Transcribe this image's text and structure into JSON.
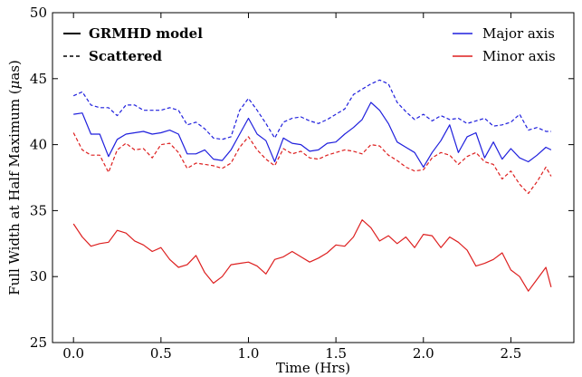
{
  "chart_data": {
    "type": "line",
    "title": "",
    "xlabel": "Time (Hrs)",
    "ylabel": "Full Width at Half Maximum (μas)",
    "ylabel_prefix": "Full Width at Half Maximum (",
    "ylabel_mu": "μ",
    "ylabel_suffix": "as)",
    "xlim": [
      -0.12,
      2.86
    ],
    "ylim": [
      25,
      50
    ],
    "xticks": [
      0.0,
      0.5,
      1.0,
      1.5,
      2.0,
      2.5
    ],
    "xtick_labels": [
      "0.0",
      "0.5",
      "1.0",
      "1.5",
      "2.0",
      "2.5"
    ],
    "yticks": [
      25,
      30,
      35,
      40,
      45,
      50
    ],
    "ytick_labels": [
      "25",
      "30",
      "35",
      "40",
      "45",
      "50"
    ],
    "grid": false,
    "legend_style": {
      "position": "top-left",
      "entries": [
        {
          "label": "GRMHD model",
          "line": "solid",
          "color": "#000000"
        },
        {
          "label": "Scattered",
          "line": "dashed",
          "color": "#000000"
        }
      ]
    },
    "legend_color": {
      "position": "top-right",
      "entries": [
        {
          "label": "Major axis",
          "color": "#1f1fdd"
        },
        {
          "label": "Minor axis",
          "color": "#dd1f1f"
        }
      ]
    },
    "series": [
      {
        "axis": "Major axis",
        "style": "dashed",
        "color": "#1f1fdd",
        "x": [
          0.0,
          0.05,
          0.1,
          0.15,
          0.2,
          0.25,
          0.3,
          0.35,
          0.4,
          0.45,
          0.5,
          0.55,
          0.6,
          0.65,
          0.7,
          0.75,
          0.8,
          0.85,
          0.9,
          0.95,
          1.0,
          1.05,
          1.1,
          1.15,
          1.2,
          1.25,
          1.3,
          1.35,
          1.4,
          1.45,
          1.5,
          1.55,
          1.6,
          1.65,
          1.7,
          1.75,
          1.8,
          1.85,
          1.9,
          1.95,
          2.0,
          2.05,
          2.1,
          2.15,
          2.2,
          2.25,
          2.3,
          2.35,
          2.4,
          2.45,
          2.5,
          2.55,
          2.6,
          2.65,
          2.7,
          2.73
        ],
        "y": [
          43.7,
          44.0,
          43.0,
          42.8,
          42.8,
          42.2,
          43.0,
          43.0,
          42.6,
          42.6,
          42.6,
          42.8,
          42.6,
          41.5,
          41.7,
          41.2,
          40.5,
          40.4,
          40.6,
          42.6,
          43.5,
          42.6,
          41.6,
          40.5,
          41.7,
          42.0,
          42.1,
          41.8,
          41.6,
          41.9,
          42.3,
          42.7,
          43.8,
          44.2,
          44.6,
          44.9,
          44.6,
          43.2,
          42.5,
          41.9,
          42.3,
          41.8,
          42.2,
          41.9,
          42.0,
          41.6,
          41.8,
          42.0,
          41.4,
          41.5,
          41.7,
          42.3,
          41.1,
          41.3,
          41.0,
          41.0
        ]
      },
      {
        "axis": "Major axis",
        "style": "solid",
        "color": "#1f1fdd",
        "x": [
          0.0,
          0.05,
          0.1,
          0.15,
          0.2,
          0.25,
          0.3,
          0.35,
          0.4,
          0.45,
          0.5,
          0.55,
          0.6,
          0.65,
          0.7,
          0.75,
          0.8,
          0.85,
          0.9,
          0.95,
          1.0,
          1.05,
          1.1,
          1.15,
          1.2,
          1.25,
          1.3,
          1.35,
          1.4,
          1.45,
          1.5,
          1.55,
          1.6,
          1.65,
          1.7,
          1.75,
          1.8,
          1.85,
          1.9,
          1.95,
          2.0,
          2.05,
          2.1,
          2.15,
          2.2,
          2.25,
          2.3,
          2.35,
          2.4,
          2.45,
          2.5,
          2.55,
          2.6,
          2.65,
          2.7,
          2.73
        ],
        "y": [
          42.3,
          42.4,
          40.8,
          40.8,
          39.1,
          40.4,
          40.8,
          40.9,
          41.0,
          40.8,
          40.9,
          41.1,
          40.8,
          39.3,
          39.3,
          39.6,
          38.9,
          38.8,
          39.6,
          40.8,
          42.0,
          40.8,
          40.3,
          38.7,
          40.5,
          40.1,
          40.0,
          39.5,
          39.6,
          40.1,
          40.2,
          40.8,
          41.3,
          41.9,
          43.2,
          42.6,
          41.6,
          40.2,
          39.8,
          39.4,
          38.3,
          39.4,
          40.3,
          41.5,
          39.4,
          40.6,
          40.9,
          39.0,
          40.2,
          38.9,
          39.7,
          39.0,
          38.7,
          39.2,
          39.8,
          39.6
        ]
      },
      {
        "axis": "Minor axis",
        "style": "dashed",
        "color": "#dd1f1f",
        "x": [
          0.0,
          0.05,
          0.1,
          0.15,
          0.2,
          0.25,
          0.3,
          0.35,
          0.4,
          0.45,
          0.5,
          0.55,
          0.6,
          0.65,
          0.7,
          0.75,
          0.8,
          0.85,
          0.9,
          0.95,
          1.0,
          1.05,
          1.1,
          1.15,
          1.2,
          1.25,
          1.3,
          1.35,
          1.4,
          1.45,
          1.5,
          1.55,
          1.6,
          1.65,
          1.7,
          1.75,
          1.8,
          1.85,
          1.9,
          1.95,
          2.0,
          2.05,
          2.1,
          2.15,
          2.2,
          2.25,
          2.3,
          2.35,
          2.4,
          2.45,
          2.5,
          2.55,
          2.6,
          2.65,
          2.7,
          2.73
        ],
        "y": [
          40.9,
          39.6,
          39.2,
          39.2,
          37.9,
          39.6,
          40.1,
          39.6,
          39.7,
          39.0,
          40.0,
          40.1,
          39.4,
          38.2,
          38.6,
          38.5,
          38.4,
          38.2,
          38.6,
          39.8,
          40.6,
          39.6,
          38.9,
          38.4,
          39.7,
          39.3,
          39.5,
          39.0,
          38.9,
          39.2,
          39.4,
          39.6,
          39.5,
          39.3,
          40.0,
          39.9,
          39.2,
          38.8,
          38.3,
          38.0,
          38.1,
          39.0,
          39.4,
          39.2,
          38.5,
          39.1,
          39.4,
          38.7,
          38.5,
          37.4,
          38.0,
          37.0,
          36.3,
          37.2,
          38.3,
          37.6
        ]
      },
      {
        "axis": "Minor axis",
        "style": "solid",
        "color": "#dd1f1f",
        "x": [
          0.0,
          0.05,
          0.1,
          0.15,
          0.2,
          0.25,
          0.3,
          0.35,
          0.4,
          0.45,
          0.5,
          0.55,
          0.6,
          0.65,
          0.7,
          0.75,
          0.8,
          0.85,
          0.9,
          0.95,
          1.0,
          1.05,
          1.1,
          1.15,
          1.2,
          1.25,
          1.3,
          1.35,
          1.4,
          1.45,
          1.5,
          1.55,
          1.6,
          1.65,
          1.7,
          1.75,
          1.8,
          1.85,
          1.9,
          1.95,
          2.0,
          2.05,
          2.1,
          2.15,
          2.2,
          2.25,
          2.3,
          2.35,
          2.4,
          2.45,
          2.5,
          2.55,
          2.6,
          2.65,
          2.7,
          2.73
        ],
        "y": [
          34.0,
          33.0,
          32.3,
          32.5,
          32.6,
          33.5,
          33.3,
          32.7,
          32.4,
          31.9,
          32.2,
          31.3,
          30.7,
          30.9,
          31.6,
          30.3,
          29.5,
          30.0,
          30.9,
          31.0,
          31.1,
          30.8,
          30.2,
          31.3,
          31.5,
          31.9,
          31.5,
          31.1,
          31.4,
          31.8,
          32.4,
          32.3,
          33.0,
          34.3,
          33.7,
          32.7,
          33.1,
          32.5,
          33.0,
          32.2,
          33.2,
          33.1,
          32.2,
          33.0,
          32.6,
          32.0,
          30.8,
          31.0,
          31.3,
          31.8,
          30.5,
          30.0,
          28.9,
          29.8,
          30.7,
          29.2
        ]
      }
    ]
  }
}
